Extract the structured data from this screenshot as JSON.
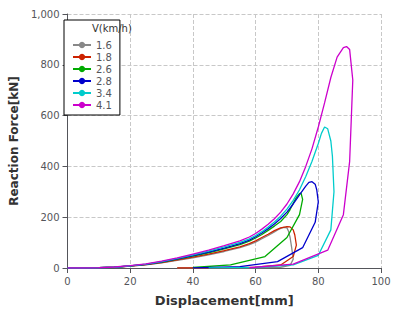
{
  "chart_data": {
    "type": "line",
    "title": "",
    "xlabel": "Displacement[mm]",
    "ylabel": "Reaction Force[kN]",
    "xlim": [
      0,
      100
    ],
    "ylim": [
      0,
      1000
    ],
    "xticks": [
      0,
      20,
      40,
      60,
      80,
      100
    ],
    "yticks": [
      0,
      200,
      400,
      600,
      800,
      1000
    ],
    "grid": true,
    "legend": "upper left",
    "legend_title": "V(km/h)",
    "series": [
      {
        "name": "1.6",
        "color": "#888888",
        "x": [
          0,
          5,
          10,
          15,
          20,
          25,
          30,
          35,
          40,
          45,
          50,
          55,
          58,
          60,
          62,
          64,
          66,
          67,
          68,
          69,
          70,
          70.5,
          71,
          71.5,
          72,
          71,
          68,
          62,
          50,
          35
        ],
        "values": [
          0,
          0,
          1,
          3,
          7,
          12,
          20,
          30,
          40,
          52,
          65,
          80,
          92,
          102,
          115,
          128,
          142,
          150,
          156,
          160,
          158,
          145,
          120,
          80,
          35,
          10,
          3,
          1,
          0.2,
          0
        ]
      },
      {
        "name": "1.8",
        "color": "#cc2200",
        "x": [
          0,
          5,
          10,
          15,
          20,
          25,
          30,
          35,
          40,
          45,
          50,
          55,
          58,
          60,
          62,
          64,
          66,
          68,
          70,
          71,
          72,
          72.5,
          73,
          72,
          68,
          60,
          48,
          35
        ],
        "values": [
          0,
          0,
          1,
          3,
          7,
          13,
          21,
          32,
          43,
          55,
          68,
          83,
          96,
          107,
          120,
          133,
          147,
          158,
          163,
          162,
          150,
          130,
          90,
          45,
          12,
          3,
          0.5,
          0
        ]
      },
      {
        "name": "2.6",
        "color": "#00aa00",
        "x": [
          0,
          5,
          10,
          15,
          20,
          25,
          30,
          35,
          40,
          45,
          50,
          55,
          58,
          60,
          62,
          64,
          66,
          68,
          70,
          71,
          72,
          73,
          74,
          74.5,
          75,
          74,
          70,
          63,
          52,
          40
        ],
        "values": [
          0,
          0,
          1,
          3,
          8,
          14,
          23,
          35,
          47,
          60,
          75,
          92,
          106,
          118,
          132,
          148,
          165,
          183,
          210,
          230,
          255,
          278,
          293,
          295,
          270,
          210,
          120,
          45,
          12,
          2
        ]
      },
      {
        "name": "2.8",
        "color": "#0000cc",
        "x": [
          0,
          5,
          10,
          15,
          20,
          25,
          30,
          35,
          40,
          45,
          50,
          55,
          58,
          60,
          62,
          64,
          66,
          68,
          70,
          72,
          74,
          76,
          77,
          78,
          79,
          79.5,
          80,
          79,
          75,
          67,
          55,
          40
        ],
        "values": [
          0,
          0,
          1,
          3,
          8,
          14,
          24,
          36,
          49,
          63,
          78,
          96,
          110,
          123,
          138,
          155,
          173,
          195,
          220,
          252,
          288,
          322,
          337,
          340,
          330,
          308,
          260,
          180,
          80,
          25,
          5,
          0.5
        ]
      },
      {
        "name": "3.4",
        "color": "#00cccc",
        "x": [
          0,
          5,
          10,
          15,
          20,
          25,
          30,
          35,
          40,
          45,
          50,
          55,
          58,
          60,
          62,
          64,
          66,
          68,
          70,
          72,
          74,
          76,
          78,
          80,
          81,
          82,
          83,
          84,
          84.5,
          85,
          84,
          80,
          72,
          60,
          45
        ],
        "values": [
          0,
          0,
          1,
          3,
          8,
          15,
          25,
          38,
          52,
          66,
          83,
          101,
          115,
          128,
          143,
          161,
          181,
          204,
          232,
          266,
          308,
          360,
          420,
          490,
          530,
          555,
          548,
          500,
          440,
          300,
          150,
          50,
          12,
          2,
          0.2
        ]
      },
      {
        "name": "4.1",
        "color": "#cc00cc",
        "x": [
          0,
          5,
          10,
          15,
          20,
          25,
          30,
          35,
          40,
          45,
          50,
          55,
          58,
          60,
          62,
          64,
          66,
          68,
          70,
          72,
          74,
          76,
          78,
          80,
          82,
          84,
          86,
          88,
          89,
          90,
          91,
          90.5,
          90,
          88,
          83,
          72,
          58
        ],
        "values": [
          0,
          0,
          1,
          4,
          9,
          16,
          27,
          40,
          55,
          70,
          88,
          107,
          122,
          136,
          153,
          172,
          194,
          220,
          252,
          292,
          340,
          400,
          470,
          555,
          650,
          750,
          830,
          868,
          872,
          860,
          740,
          580,
          420,
          210,
          70,
          15,
          1
        ]
      }
    ]
  }
}
